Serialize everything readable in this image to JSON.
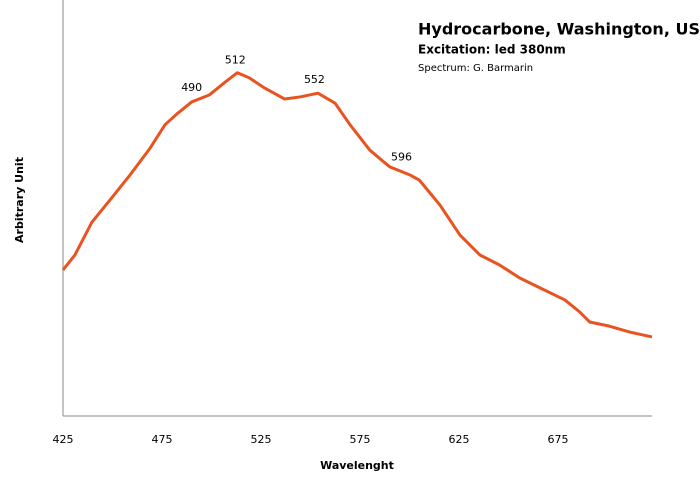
{
  "chart_data": {
    "type": "line",
    "title": "Hydrocarbone, Washington, USA",
    "subtitle": "Excitation: led 380nm",
    "credit": "Spectrum: G. Barmarin",
    "x_label": "Wavelenght",
    "y_label": "Arbitrary Unit",
    "x": [
      425,
      431,
      439.6,
      448.7,
      458.8,
      469,
      476.5,
      483,
      490,
      499,
      507,
      513,
      519,
      527,
      537,
      544.7,
      553.8,
      562.4,
      570,
      580,
      590,
      600,
      605,
      615.4,
      625.5,
      635.6,
      645.5,
      655.6,
      665.9,
      678.5,
      686,
      691,
      701,
      711,
      722.5
    ],
    "series": [
      {
        "name": "Spectrum",
        "color": "#e8531f",
        "values": [
          35.1,
          38.7,
          46.6,
          51.9,
          57.9,
          64.4,
          70,
          72.8,
          75.5,
          77.2,
          80.3,
          82.5,
          81.3,
          78.8,
          76.2,
          76.7,
          77.6,
          75.2,
          70,
          63.9,
          59.9,
          58,
          56.7,
          50.7,
          43.5,
          38.7,
          36.3,
          33.2,
          30.8,
          27.9,
          25,
          22.6,
          21.6,
          20.2,
          19
        ]
      }
    ],
    "peaks": [
      490,
      512,
      552,
      596
    ],
    "xlim": [
      425,
      722.5
    ],
    "ylim": [
      0,
      100
    ],
    "xticks": [
      425,
      475,
      525,
      575,
      625,
      675
    ]
  }
}
